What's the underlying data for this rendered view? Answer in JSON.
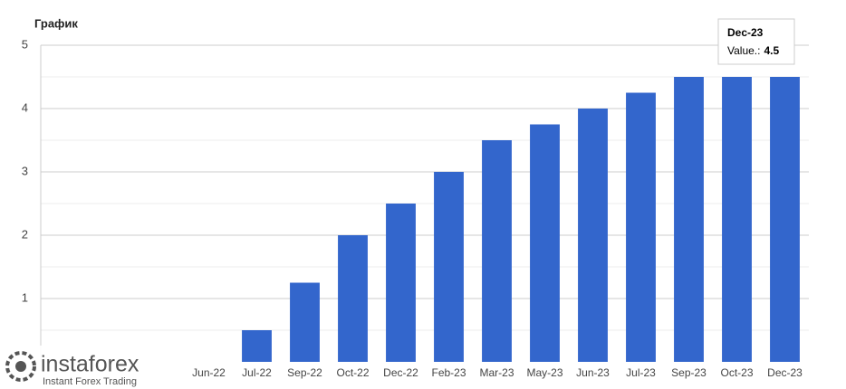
{
  "chart_data": {
    "type": "bar",
    "title": "График",
    "categories": [
      null,
      null,
      null,
      "Jun-22",
      "Jul-22",
      "Sep-22",
      "Oct-22",
      "Dec-22",
      "Feb-23",
      "Mar-23",
      "May-23",
      "Jun-23",
      "Jul-23",
      "Sep-23",
      "Oct-23",
      "Dec-23"
    ],
    "values": [
      0,
      0,
      0,
      0,
      0.5,
      1.25,
      2,
      2.5,
      3,
      3.5,
      3.75,
      4,
      4.25,
      4.5,
      4.5,
      4.5
    ],
    "color": "#3366cc",
    "ylim": [
      0,
      5
    ],
    "yticks": [
      1,
      2,
      3,
      4,
      5
    ],
    "minor_yticks": [
      0.5,
      1.5,
      2.5,
      3.5,
      4.5
    ],
    "grid": true,
    "tooltip": {
      "category": "Dec-23",
      "label": "Value.:",
      "value": 4.5
    }
  },
  "watermark": {
    "brand": "instaforex",
    "tagline": "Instant Forex Trading"
  }
}
